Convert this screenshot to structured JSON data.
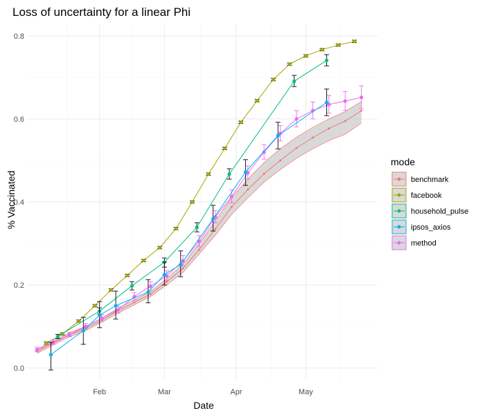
{
  "chart_data": {
    "type": "line",
    "title": "Loss of uncertainty for a linear Phi",
    "xlabel": "Date",
    "ylabel": "% Vaccinated",
    "x_ticks": [
      {
        "label": "Feb",
        "date": "2021-02-01"
      },
      {
        "label": "Mar",
        "date": "2021-03-01"
      },
      {
        "label": "Apr",
        "date": "2021-04-01"
      },
      {
        "label": "May",
        "date": "2021-05-01"
      }
    ],
    "y_ticks": [
      0.0,
      0.2,
      0.4,
      0.6,
      0.8
    ],
    "xlim": [
      "2021-01-01",
      "2021-06-01"
    ],
    "ylim": [
      -0.03,
      0.83
    ],
    "grid": true,
    "legend": {
      "title": "mode",
      "position": "right"
    },
    "series": [
      {
        "name": "benchmark",
        "color": "#F8766D",
        "band": true,
        "points": [
          {
            "date": "2021-01-05",
            "y": 0.04,
            "lo": 0.035,
            "hi": 0.045
          },
          {
            "date": "2021-01-12",
            "y": 0.06,
            "lo": 0.055,
            "hi": 0.065
          },
          {
            "date": "2021-01-19",
            "y": 0.08,
            "lo": 0.075,
            "hi": 0.085
          },
          {
            "date": "2021-01-26",
            "y": 0.095,
            "lo": 0.09,
            "hi": 0.1
          },
          {
            "date": "2021-02-02",
            "y": 0.115,
            "lo": 0.11,
            "hi": 0.12
          },
          {
            "date": "2021-02-09",
            "y": 0.138,
            "lo": 0.132,
            "hi": 0.144
          },
          {
            "date": "2021-02-16",
            "y": 0.158,
            "lo": 0.152,
            "hi": 0.164
          },
          {
            "date": "2021-02-23",
            "y": 0.178,
            "lo": 0.172,
            "hi": 0.184
          },
          {
            "date": "2021-03-02",
            "y": 0.208,
            "lo": 0.2,
            "hi": 0.216
          },
          {
            "date": "2021-03-09",
            "y": 0.24,
            "lo": 0.23,
            "hi": 0.25
          },
          {
            "date": "2021-03-16",
            "y": 0.285,
            "lo": 0.275,
            "hi": 0.3
          },
          {
            "date": "2021-03-23",
            "y": 0.335,
            "lo": 0.32,
            "hi": 0.355
          },
          {
            "date": "2021-03-30",
            "y": 0.388,
            "lo": 0.37,
            "hi": 0.41
          },
          {
            "date": "2021-04-06",
            "y": 0.43,
            "lo": 0.41,
            "hi": 0.455
          },
          {
            "date": "2021-04-13",
            "y": 0.468,
            "lo": 0.448,
            "hi": 0.495
          },
          {
            "date": "2021-04-20",
            "y": 0.5,
            "lo": 0.478,
            "hi": 0.528
          },
          {
            "date": "2021-04-27",
            "y": 0.53,
            "lo": 0.505,
            "hi": 0.556
          },
          {
            "date": "2021-05-04",
            "y": 0.555,
            "lo": 0.528,
            "hi": 0.58
          },
          {
            "date": "2021-05-11",
            "y": 0.577,
            "lo": 0.548,
            "hi": 0.6
          },
          {
            "date": "2021-05-18",
            "y": 0.595,
            "lo": 0.563,
            "hi": 0.618
          },
          {
            "date": "2021-05-25",
            "y": 0.62,
            "lo": 0.59,
            "hi": 0.642
          }
        ]
      },
      {
        "name": "facebook",
        "color": "#A3A500",
        "points": [
          {
            "date": "2021-01-09",
            "y": 0.06,
            "lo": 0.057,
            "hi": 0.063
          },
          {
            "date": "2021-01-16",
            "y": 0.082,
            "lo": 0.079,
            "hi": 0.085
          },
          {
            "date": "2021-01-23",
            "y": 0.113,
            "lo": 0.11,
            "hi": 0.116
          },
          {
            "date": "2021-01-30",
            "y": 0.15,
            "lo": 0.147,
            "hi": 0.153
          },
          {
            "date": "2021-02-06",
            "y": 0.188,
            "lo": 0.185,
            "hi": 0.191
          },
          {
            "date": "2021-02-13",
            "y": 0.223,
            "lo": 0.22,
            "hi": 0.226
          },
          {
            "date": "2021-02-20",
            "y": 0.259,
            "lo": 0.256,
            "hi": 0.262
          },
          {
            "date": "2021-02-27",
            "y": 0.29,
            "lo": 0.287,
            "hi": 0.293
          },
          {
            "date": "2021-03-06",
            "y": 0.336,
            "lo": 0.333,
            "hi": 0.339
          },
          {
            "date": "2021-03-13",
            "y": 0.4,
            "lo": 0.397,
            "hi": 0.403
          },
          {
            "date": "2021-03-20",
            "y": 0.467,
            "lo": 0.464,
            "hi": 0.47
          },
          {
            "date": "2021-03-27",
            "y": 0.529,
            "lo": 0.526,
            "hi": 0.532
          },
          {
            "date": "2021-04-03",
            "y": 0.592,
            "lo": 0.589,
            "hi": 0.595
          },
          {
            "date": "2021-04-10",
            "y": 0.644,
            "lo": 0.641,
            "hi": 0.647
          },
          {
            "date": "2021-04-17",
            "y": 0.695,
            "lo": 0.692,
            "hi": 0.698
          },
          {
            "date": "2021-04-24",
            "y": 0.732,
            "lo": 0.729,
            "hi": 0.735
          },
          {
            "date": "2021-05-01",
            "y": 0.752,
            "lo": 0.749,
            "hi": 0.755
          },
          {
            "date": "2021-05-08",
            "y": 0.767,
            "lo": 0.764,
            "hi": 0.77
          },
          {
            "date": "2021-05-15",
            "y": 0.778,
            "lo": 0.775,
            "hi": 0.781
          },
          {
            "date": "2021-05-22",
            "y": 0.787,
            "lo": 0.784,
            "hi": 0.79
          }
        ]
      },
      {
        "name": "household_pulse",
        "color": "#00BF7D",
        "points": [
          {
            "date": "2021-01-14",
            "y": 0.076,
            "lo": 0.071,
            "hi": 0.081
          },
          {
            "date": "2021-02-01",
            "y": 0.137,
            "lo": 0.13,
            "hi": 0.145
          },
          {
            "date": "2021-02-15",
            "y": 0.198,
            "lo": 0.188,
            "hi": 0.208
          },
          {
            "date": "2021-03-01",
            "y": 0.255,
            "lo": 0.243,
            "hi": 0.265
          },
          {
            "date": "2021-03-15",
            "y": 0.339,
            "lo": 0.328,
            "hi": 0.35
          },
          {
            "date": "2021-03-29",
            "y": 0.467,
            "lo": 0.455,
            "hi": 0.48
          },
          {
            "date": "2021-04-26",
            "y": 0.691,
            "lo": 0.678,
            "hi": 0.705
          },
          {
            "date": "2021-05-10",
            "y": 0.741,
            "lo": 0.728,
            "hi": 0.755
          }
        ]
      },
      {
        "name": "ipsos_axios",
        "color": "#00B0F6",
        "points": [
          {
            "date": "2021-01-11",
            "y": 0.032,
            "lo": -0.005,
            "hi": 0.062
          },
          {
            "date": "2021-01-25",
            "y": 0.09,
            "lo": 0.057,
            "hi": 0.122
          },
          {
            "date": "2021-02-01",
            "y": 0.127,
            "lo": 0.097,
            "hi": 0.16
          },
          {
            "date": "2021-02-08",
            "y": 0.15,
            "lo": 0.118,
            "hi": 0.185
          },
          {
            "date": "2021-02-22",
            "y": 0.183,
            "lo": 0.157,
            "hi": 0.213
          },
          {
            "date": "2021-03-01",
            "y": 0.225,
            "lo": 0.2,
            "hi": 0.255
          },
          {
            "date": "2021-03-08",
            "y": 0.249,
            "lo": 0.22,
            "hi": 0.282
          },
          {
            "date": "2021-03-22",
            "y": 0.359,
            "lo": 0.33,
            "hi": 0.392
          },
          {
            "date": "2021-04-05",
            "y": 0.472,
            "lo": 0.44,
            "hi": 0.502
          },
          {
            "date": "2021-04-19",
            "y": 0.56,
            "lo": 0.528,
            "hi": 0.592
          },
          {
            "date": "2021-05-10",
            "y": 0.64,
            "lo": 0.608,
            "hi": 0.672
          }
        ]
      },
      {
        "name": "method",
        "color": "#E76BF3",
        "points": [
          {
            "date": "2021-01-05",
            "y": 0.044,
            "lo": 0.039,
            "hi": 0.05
          },
          {
            "date": "2021-01-12",
            "y": 0.062,
            "lo": 0.057,
            "hi": 0.068
          },
          {
            "date": "2021-01-19",
            "y": 0.08,
            "lo": 0.075,
            "hi": 0.086
          },
          {
            "date": "2021-01-26",
            "y": 0.1,
            "lo": 0.094,
            "hi": 0.107
          },
          {
            "date": "2021-02-02",
            "y": 0.12,
            "lo": 0.113,
            "hi": 0.128
          },
          {
            "date": "2021-02-09",
            "y": 0.14,
            "lo": 0.132,
            "hi": 0.149
          },
          {
            "date": "2021-02-16",
            "y": 0.172,
            "lo": 0.163,
            "hi": 0.182
          },
          {
            "date": "2021-02-23",
            "y": 0.197,
            "lo": 0.187,
            "hi": 0.208
          },
          {
            "date": "2021-03-02",
            "y": 0.222,
            "lo": 0.211,
            "hi": 0.234
          },
          {
            "date": "2021-03-09",
            "y": 0.258,
            "lo": 0.246,
            "hi": 0.271
          },
          {
            "date": "2021-03-16",
            "y": 0.305,
            "lo": 0.292,
            "hi": 0.319
          },
          {
            "date": "2021-03-23",
            "y": 0.364,
            "lo": 0.35,
            "hi": 0.379
          },
          {
            "date": "2021-03-30",
            "y": 0.413,
            "lo": 0.398,
            "hi": 0.429
          },
          {
            "date": "2021-04-06",
            "y": 0.47,
            "lo": 0.455,
            "hi": 0.487
          },
          {
            "date": "2021-04-13",
            "y": 0.52,
            "lo": 0.503,
            "hi": 0.538
          },
          {
            "date": "2021-04-20",
            "y": 0.565,
            "lo": 0.547,
            "hi": 0.584
          },
          {
            "date": "2021-04-27",
            "y": 0.6,
            "lo": 0.581,
            "hi": 0.62
          },
          {
            "date": "2021-05-04",
            "y": 0.62,
            "lo": 0.6,
            "hi": 0.641
          },
          {
            "date": "2021-05-11",
            "y": 0.635,
            "lo": 0.614,
            "hi": 0.657
          },
          {
            "date": "2021-05-18",
            "y": 0.643,
            "lo": 0.621,
            "hi": 0.666
          },
          {
            "date": "2021-05-25",
            "y": 0.652,
            "lo": 0.625,
            "hi": 0.68
          }
        ]
      }
    ]
  }
}
